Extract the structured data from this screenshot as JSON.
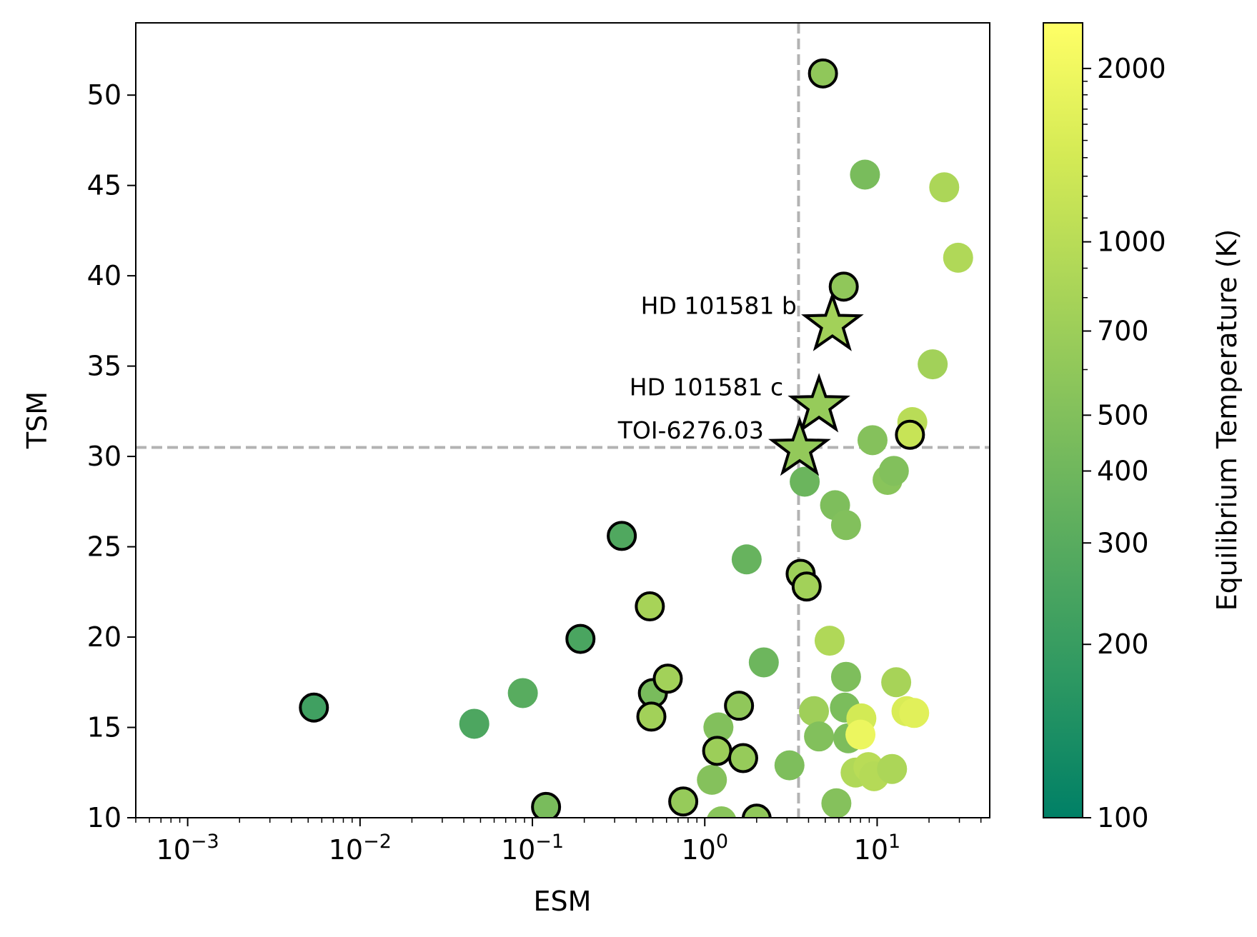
{
  "chart_data": {
    "type": "scatter",
    "xlabel": "ESM",
    "ylabel": "TSM",
    "xscale": "log",
    "xlim": [
      0.0005,
      45
    ],
    "ylim": [
      10,
      54
    ],
    "x_major_ticks": [
      0.001,
      0.01,
      0.1,
      1,
      10
    ],
    "x_tick_labels": [
      {
        "base": "10",
        "exp": "−3"
      },
      {
        "base": "10",
        "exp": "−2"
      },
      {
        "base": "10",
        "exp": "−1"
      },
      {
        "base": "10",
        "exp": "0"
      },
      {
        "base": "10",
        "exp": "1"
      }
    ],
    "y_ticks": [
      10,
      15,
      20,
      25,
      30,
      35,
      40,
      45,
      50
    ],
    "y_tick_labels": [
      "10",
      "15",
      "20",
      "25",
      "30",
      "35",
      "40",
      "45",
      "50"
    ],
    "reference_lines": {
      "esm": 3.5,
      "tsm": 30.5
    },
    "colorbar": {
      "label": "Equilibrium Temperature (K)",
      "scale": "log",
      "range": [
        100,
        2400
      ],
      "ticks": [
        100,
        200,
        300,
        400,
        500,
        700,
        1000,
        2000
      ],
      "tick_labels": [
        "100",
        "200",
        "300",
        "400",
        "500",
        "700",
        "1000",
        "2000"
      ],
      "colors": [
        "#008066",
        "#2b9762",
        "#55aa5f",
        "#80bf5c",
        "#aad558",
        "#d4ea55",
        "#ffff66"
      ]
    },
    "points_plain": [
      {
        "esm": 0.046,
        "tsm": 15.2,
        "teq": 260
      },
      {
        "esm": 0.088,
        "tsm": 16.9,
        "teq": 300
      },
      {
        "esm": 1.2,
        "tsm": 15.0,
        "teq": 500
      },
      {
        "esm": 1.1,
        "tsm": 12.1,
        "teq": 520
      },
      {
        "esm": 1.25,
        "tsm": 9.8,
        "teq": 550
      },
      {
        "esm": 1.75,
        "tsm": 24.3,
        "teq": 360
      },
      {
        "esm": 2.2,
        "tsm": 18.6,
        "teq": 390
      },
      {
        "esm": 3.1,
        "tsm": 12.9,
        "teq": 480
      },
      {
        "esm": 3.8,
        "tsm": 28.6,
        "teq": 380
      },
      {
        "esm": 4.3,
        "tsm": 15.9,
        "teq": 720
      },
      {
        "esm": 4.6,
        "tsm": 14.5,
        "teq": 500
      },
      {
        "esm": 5.3,
        "tsm": 19.8,
        "teq": 900
      },
      {
        "esm": 5.7,
        "tsm": 27.3,
        "teq": 480
      },
      {
        "esm": 5.8,
        "tsm": 10.8,
        "teq": 520
      },
      {
        "esm": 6.6,
        "tsm": 26.2,
        "teq": 500
      },
      {
        "esm": 6.6,
        "tsm": 17.8,
        "teq": 480
      },
      {
        "esm": 6.5,
        "tsm": 16.1,
        "teq": 460
      },
      {
        "esm": 6.8,
        "tsm": 14.4,
        "teq": 470
      },
      {
        "esm": 7.5,
        "tsm": 12.5,
        "teq": 900
      },
      {
        "esm": 8.1,
        "tsm": 15.5,
        "teq": 1400
      },
      {
        "esm": 8.0,
        "tsm": 14.6,
        "teq": 1900
      },
      {
        "esm": 8.5,
        "tsm": 45.6,
        "teq": 450
      },
      {
        "esm": 8.9,
        "tsm": 12.8,
        "teq": 1000
      },
      {
        "esm": 9.6,
        "tsm": 12.3,
        "teq": 950
      },
      {
        "esm": 9.4,
        "tsm": 30.9,
        "teq": 520
      },
      {
        "esm": 11.5,
        "tsm": 28.7,
        "teq": 550
      },
      {
        "esm": 12.5,
        "tsm": 29.2,
        "teq": 500
      },
      {
        "esm": 12.2,
        "tsm": 12.7,
        "teq": 850
      },
      {
        "esm": 12.9,
        "tsm": 17.5,
        "teq": 800
      },
      {
        "esm": 14.8,
        "tsm": 15.9,
        "teq": 1500
      },
      {
        "esm": 16.4,
        "tsm": 15.8,
        "teq": 1650
      },
      {
        "esm": 16.0,
        "tsm": 31.9,
        "teq": 1000
      },
      {
        "esm": 21.0,
        "tsm": 35.1,
        "teq": 750
      },
      {
        "esm": 24.5,
        "tsm": 44.9,
        "teq": 850
      },
      {
        "esm": 29.5,
        "tsm": 41.0,
        "teq": 900
      }
    ],
    "points_outlined": [
      {
        "esm": 0.0054,
        "tsm": 16.1,
        "teq": 220
      },
      {
        "esm": 0.12,
        "tsm": 10.6,
        "teq": 450
      },
      {
        "esm": 0.19,
        "tsm": 19.9,
        "teq": 250
      },
      {
        "esm": 0.33,
        "tsm": 25.6,
        "teq": 270
      },
      {
        "esm": 0.48,
        "tsm": 21.7,
        "teq": 800
      },
      {
        "esm": 0.5,
        "tsm": 16.9,
        "teq": 450
      },
      {
        "esm": 0.49,
        "tsm": 15.6,
        "teq": 750
      },
      {
        "esm": 0.61,
        "tsm": 17.7,
        "teq": 750
      },
      {
        "esm": 0.75,
        "tsm": 10.9,
        "teq": 650
      },
      {
        "esm": 1.18,
        "tsm": 13.7,
        "teq": 700
      },
      {
        "esm": 1.58,
        "tsm": 16.2,
        "teq": 600
      },
      {
        "esm": 1.67,
        "tsm": 13.3,
        "teq": 650
      },
      {
        "esm": 2.0,
        "tsm": 9.95,
        "teq": 600
      },
      {
        "esm": 3.6,
        "tsm": 23.5,
        "teq": 700
      },
      {
        "esm": 3.9,
        "tsm": 22.8,
        "teq": 750
      },
      {
        "esm": 4.85,
        "tsm": 51.2,
        "teq": 600
      },
      {
        "esm": 6.4,
        "tsm": 39.4,
        "teq": 600
      },
      {
        "esm": 15.5,
        "tsm": 31.2,
        "teq": 1200
      }
    ],
    "stars": [
      {
        "label": "HD 101581 b",
        "esm": 5.5,
        "tsm": 37.3,
        "teq": 750
      },
      {
        "label": "HD 101581 c",
        "esm": 4.6,
        "tsm": 32.8,
        "teq": 650
      },
      {
        "label": "TOI-6276.03",
        "esm": 3.55,
        "tsm": 30.4,
        "teq": 620
      }
    ]
  }
}
